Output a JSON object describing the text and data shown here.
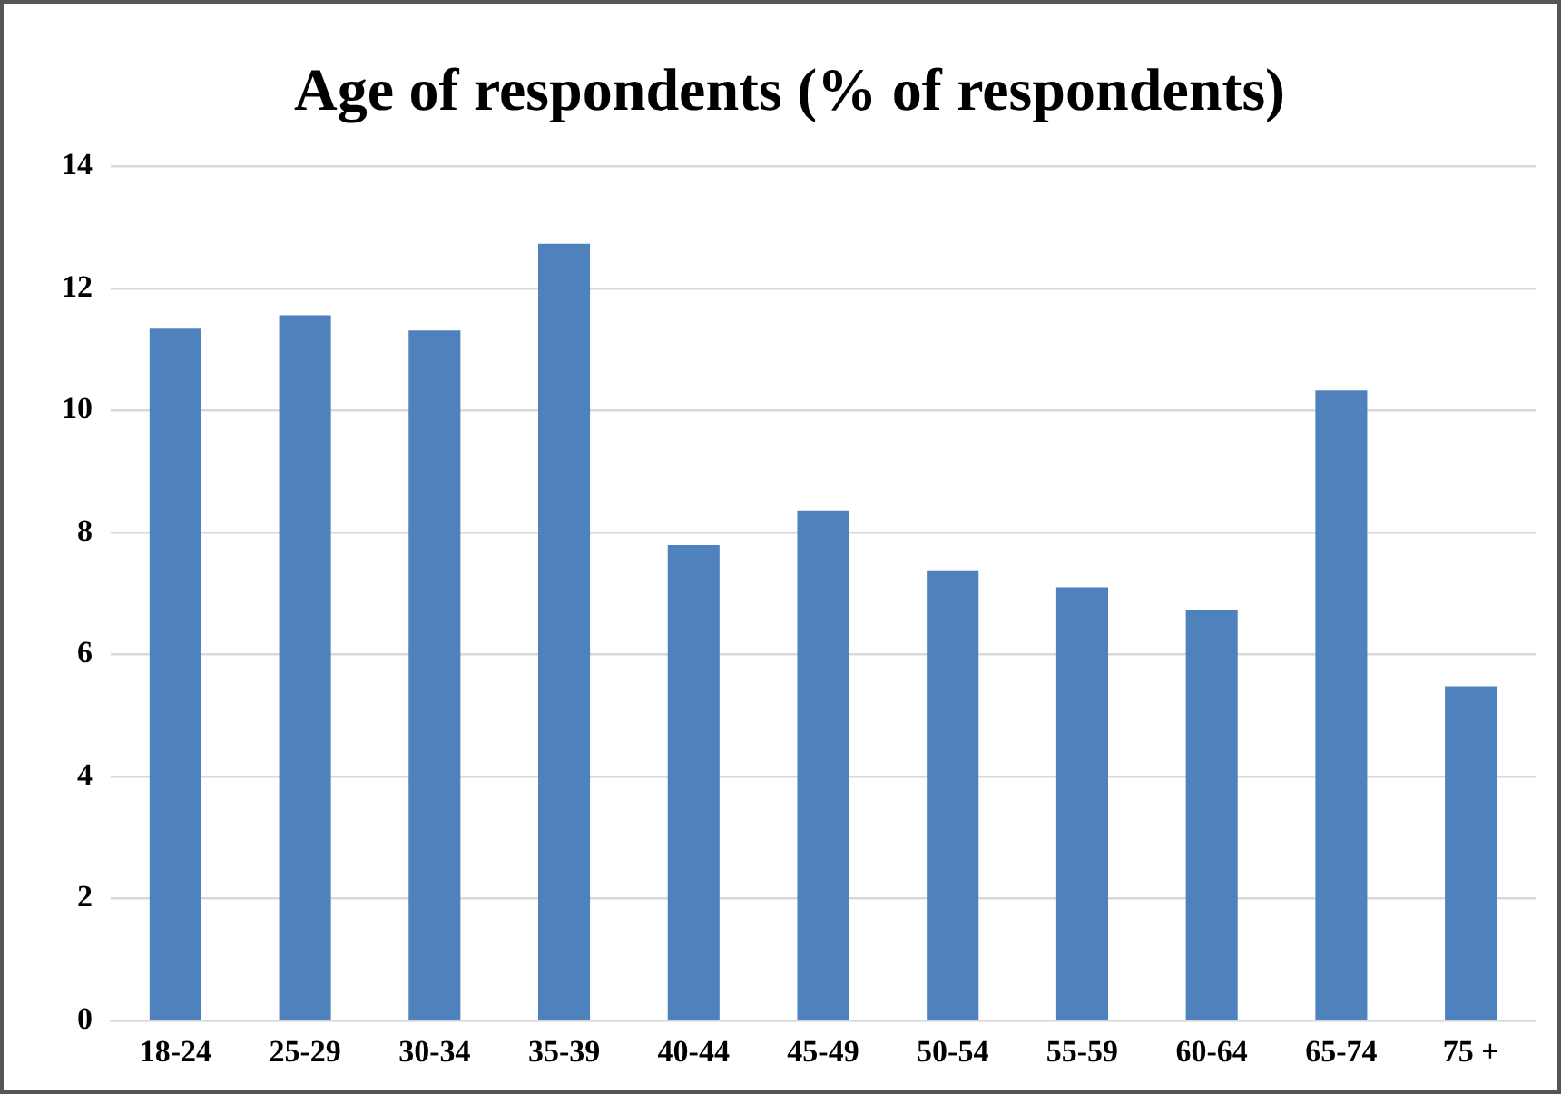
{
  "chart_data": {
    "type": "bar",
    "title": "Age of respondents (% of respondents)",
    "categories": [
      "18-24",
      "25-29",
      "30-34",
      "35-39",
      "40-44",
      "45-49",
      "50-54",
      "55-59",
      "60-64",
      "65-74",
      "75 +"
    ],
    "values": [
      11.34,
      11.56,
      11.31,
      12.73,
      7.79,
      8.36,
      7.38,
      7.1,
      6.72,
      10.33,
      5.48
    ],
    "color": "#4f81bd",
    "ylim": [
      0,
      14
    ],
    "yticks": [
      0,
      2,
      4,
      6,
      8,
      10,
      12,
      14
    ],
    "grid": "y",
    "legend": false
  }
}
